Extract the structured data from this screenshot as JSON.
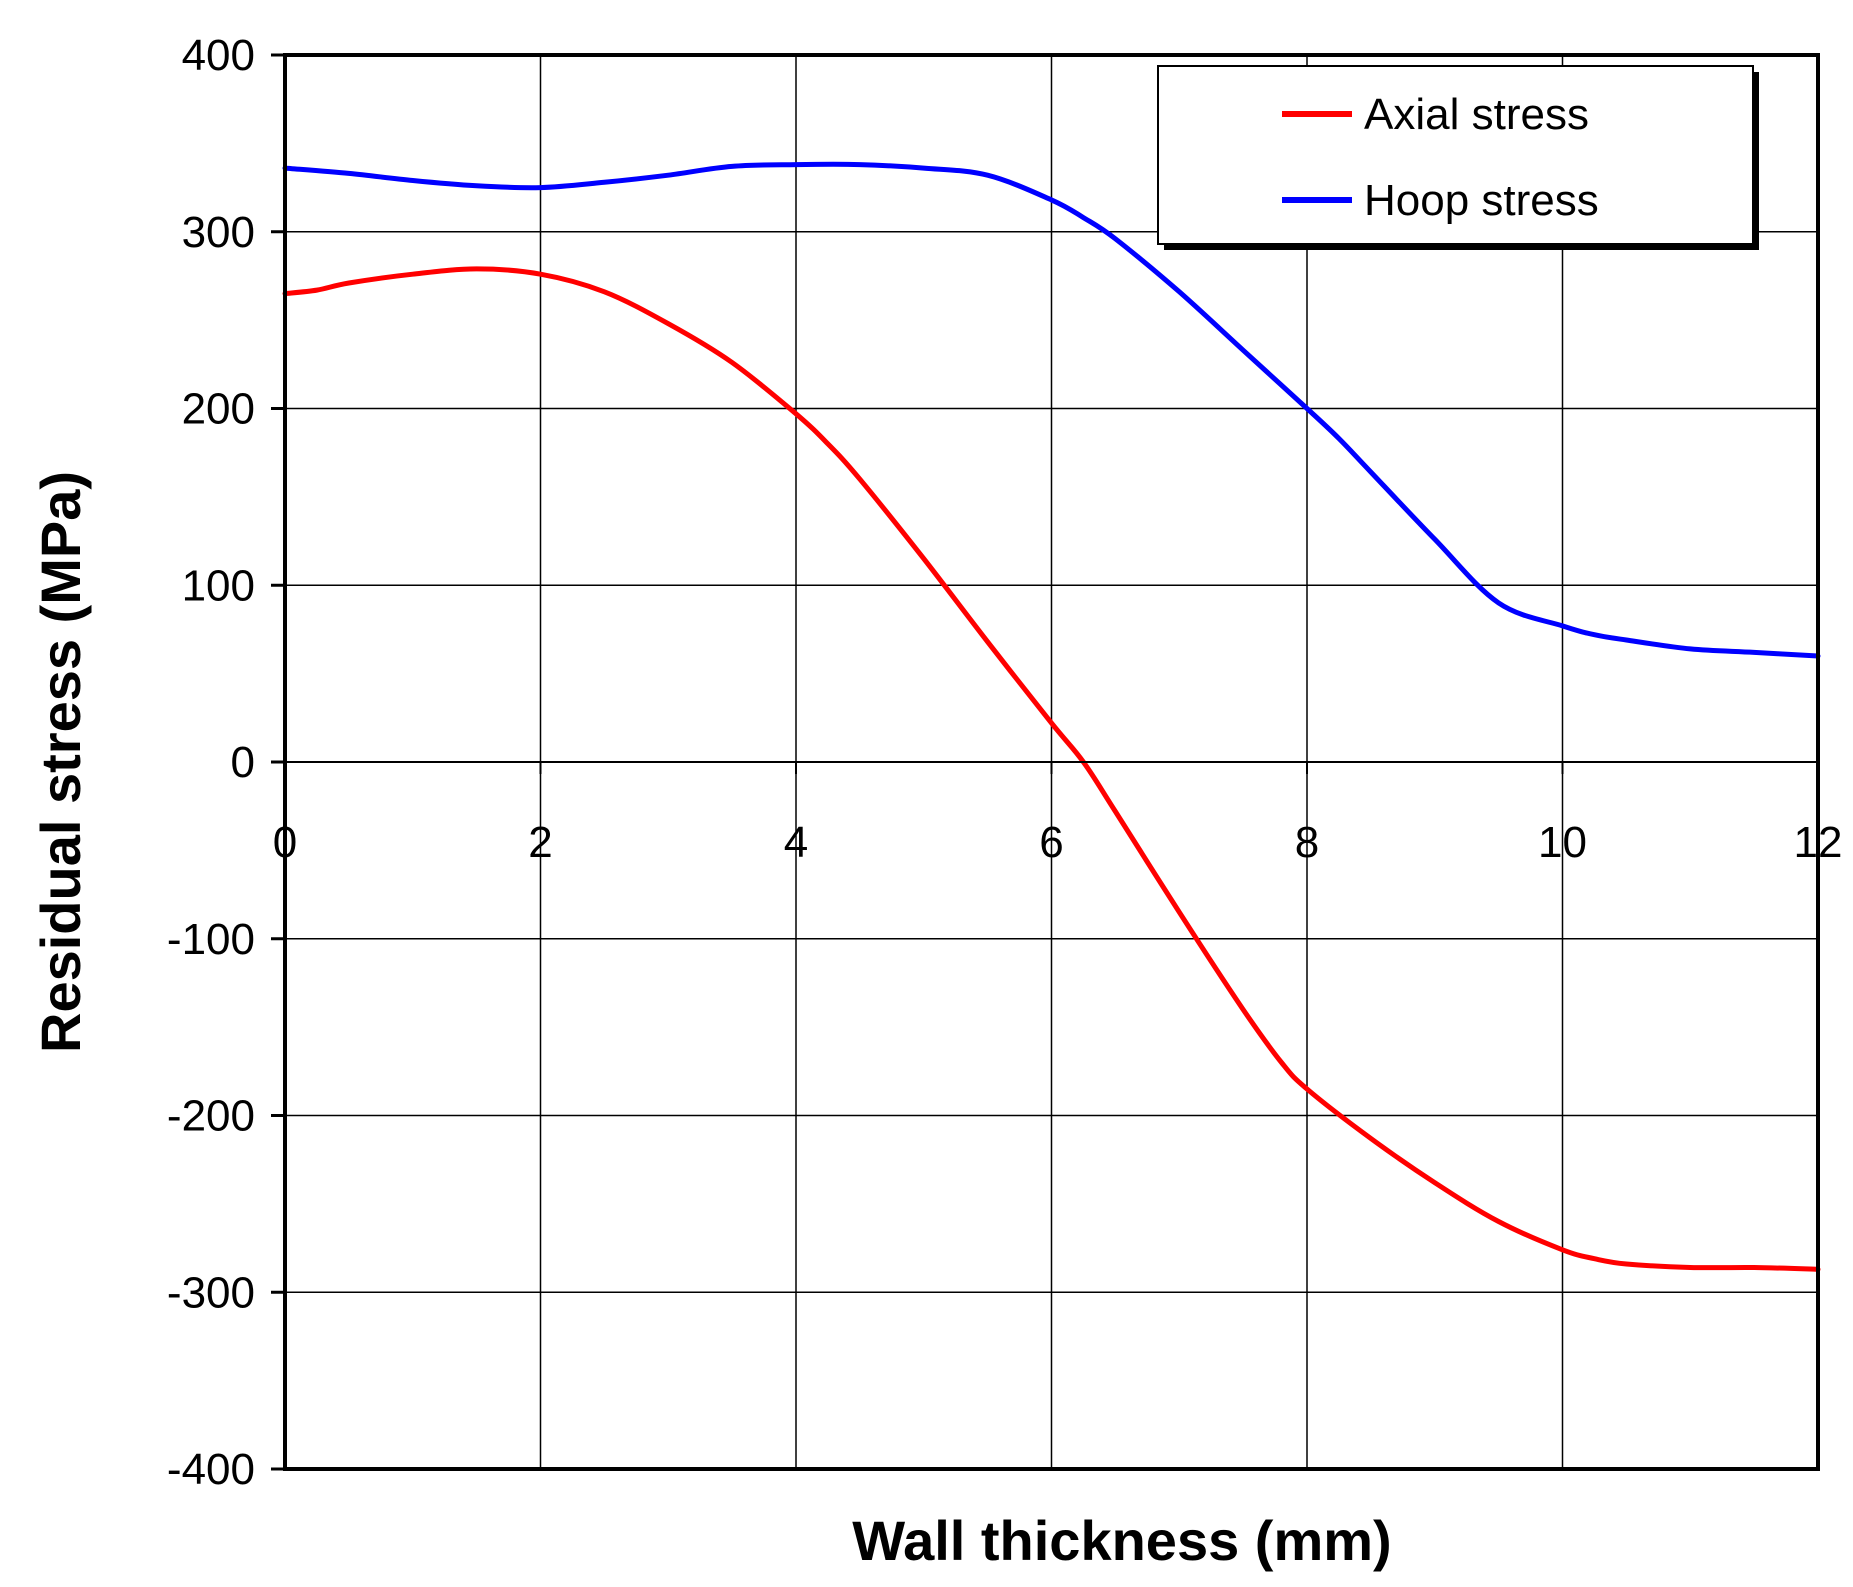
{
  "chart_data": {
    "type": "line",
    "title": "",
    "xlabel": "Wall thickness (mm)",
    "ylabel": "Residual stress (MPa)",
    "xlim": [
      0,
      12
    ],
    "ylim": [
      -400,
      400
    ],
    "x_ticks": [
      0,
      2,
      4,
      6,
      8,
      10,
      12
    ],
    "y_ticks": [
      400,
      300,
      200,
      100,
      0,
      -100,
      -200,
      -300,
      -400
    ],
    "x_tick_labels": [
      "0",
      "2",
      "4",
      "6",
      "8",
      "10",
      "12"
    ],
    "y_tick_labels": [
      "400",
      "300",
      "200",
      "100",
      "0",
      "-100",
      "-200",
      "-300",
      "-400"
    ],
    "grid": true,
    "legend_position": "top-right",
    "series": [
      {
        "name": "Axial stress",
        "color": "#ff0000",
        "x": [
          0,
          0.25,
          0.5,
          1.0,
          1.5,
          2.0,
          2.5,
          3.0,
          3.5,
          4.0,
          4.25,
          4.5,
          5.0,
          5.5,
          6.0,
          6.25,
          6.5,
          7.0,
          7.5,
          7.8,
          8.0,
          8.5,
          9.0,
          9.5,
          10.0,
          10.25,
          10.5,
          11.0,
          11.5,
          12.0
        ],
        "y": [
          265,
          267,
          271,
          276,
          279,
          276,
          266,
          248,
          226,
          197,
          180,
          160,
          115,
          68,
          22,
          0,
          -28,
          -85,
          -140,
          -170,
          -185,
          -213,
          -238,
          -260,
          -276,
          -281,
          -284,
          -286,
          -286,
          -287
        ]
      },
      {
        "name": "Hoop stress",
        "color": "#0000ff",
        "x": [
          0,
          0.5,
          1.0,
          1.5,
          2.0,
          2.5,
          3.0,
          3.5,
          4.0,
          4.5,
          5.0,
          5.5,
          6.0,
          6.25,
          6.5,
          7.0,
          7.5,
          8.0,
          8.25,
          8.5,
          9.0,
          9.5,
          10.0,
          10.25,
          10.5,
          11.0,
          11.5,
          12.0
        ],
        "y": [
          336,
          333,
          329,
          326,
          325,
          328,
          332,
          337,
          338,
          338,
          336,
          332,
          318,
          308,
          296,
          266,
          233,
          200,
          183,
          164,
          126,
          90,
          77,
          72,
          69,
          64,
          62,
          60
        ]
      }
    ]
  }
}
